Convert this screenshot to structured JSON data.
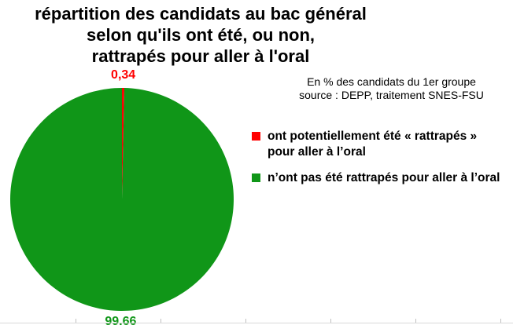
{
  "chart_data": {
    "type": "pie",
    "title_lines": [
      "répartition des candidats au bac général",
      "selon qu'ils ont été, ou non,",
      "rattrapés pour aller à l'oral"
    ],
    "subtitle_lines": [
      "En % des candidats du 1er groupe",
      "source : DEPP, traitement SNES-FSU"
    ],
    "slices": [
      {
        "label": "ont potentiellement été « rattrapés »\npour aller à l’oral",
        "value": 0.34,
        "value_label": "0,34",
        "color": "#ff0000"
      },
      {
        "label": "n’ont pas été rattrapés pour aller à l’oral",
        "value": 99.66,
        "value_label": "99,66",
        "color": "#109618"
      }
    ],
    "legend_position": "right"
  }
}
